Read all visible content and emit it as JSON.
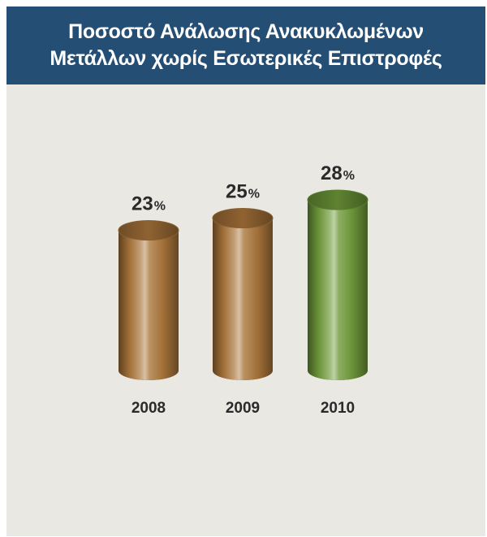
{
  "title": {
    "line1": "Ποσοστό Ανάλωσης Ανακυκλωμένων",
    "line2": "Μετάλλων χωρίς Εσωτερικές Επιστροφές"
  },
  "colors": {
    "header_bg": "#244e73",
    "panel_bg": "#e9e8e3",
    "bronze": "#a9753a",
    "green": "#6f9a3a",
    "text": "#2a2a2a"
  },
  "chart_data": {
    "type": "bar",
    "style": "cylinder",
    "title": "Ποσοστό Ανάλωσης Ανακυκλωμένων Μετάλλων χωρίς Εσωτερικές Επιστροφές",
    "categories": [
      "2008",
      "2009",
      "2010"
    ],
    "values": [
      23,
      25,
      28
    ],
    "unit": "%",
    "bar_colors": [
      "#a9753a",
      "#a9753a",
      "#6f9a3a"
    ],
    "grid": false,
    "legend": "none"
  }
}
